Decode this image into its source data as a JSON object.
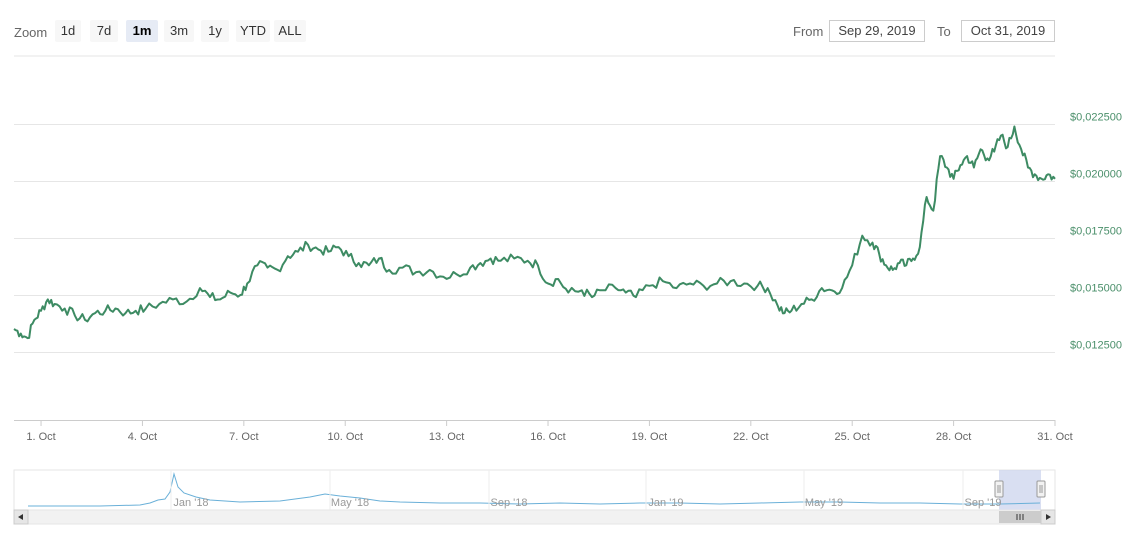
{
  "zoom": {
    "label": "Zoom",
    "buttons": [
      "1d",
      "7d",
      "1m",
      "3m",
      "1y",
      "YTD",
      "ALL"
    ],
    "active": "1m"
  },
  "range": {
    "from_label": "From",
    "from_value": "Sep 29, 2019",
    "to_label": "To",
    "to_value": "Oct 31, 2019"
  },
  "colors": {
    "line": "#3d8b63",
    "navigator_line": "#6ab0d8",
    "navigator_mask": "#c9d2ec",
    "grid": "#e6e6e6"
  },
  "chart_data": {
    "type": "line",
    "title": "",
    "xlabel": "",
    "ylabel": "",
    "x_range": [
      0.2,
      31
    ],
    "ylim": [
      0.0095,
      0.0255
    ],
    "y_ticks": [
      12500,
      15000,
      17500,
      20000,
      22500
    ],
    "y_tick_labels": [
      "$0,012500",
      "$0,015000",
      "$0,017500",
      "$0,020000",
      "$0,022500"
    ],
    "x_ticks": [
      1,
      4,
      7,
      10,
      13,
      16,
      19,
      22,
      25,
      28,
      31
    ],
    "x_tick_labels": [
      "1. Oct",
      "4. Oct",
      "7. Oct",
      "10. Oct",
      "13. Oct",
      "16. Oct",
      "19. Oct",
      "22. Oct",
      "25. Oct",
      "28. Oct",
      "31. Oct"
    ],
    "grid": true,
    "series": [
      {
        "x": [
          0.2,
          0.4,
          0.6,
          0.8,
          1.0,
          1.2,
          1.4,
          1.7,
          2.0,
          2.3,
          2.6,
          2.9,
          3.2,
          3.5,
          3.8,
          4.1,
          4.5,
          4.9,
          5.3,
          5.7,
          6.0,
          6.3,
          6.6,
          6.9,
          7.1,
          7.4,
          7.7,
          8.0,
          8.3,
          8.6,
          8.9,
          9.2,
          9.5,
          9.8,
          10.1,
          10.4,
          10.7,
          11.0,
          11.3,
          11.7,
          12.1,
          12.5,
          12.9,
          13.3,
          13.7,
          14.0,
          14.3,
          14.6,
          15.0,
          15.4,
          15.7,
          16.0,
          16.3,
          16.6,
          17.0,
          17.3,
          17.6,
          18.0,
          18.3,
          18.6,
          19.0,
          19.4,
          19.8,
          20.2,
          20.6,
          21.0,
          21.4,
          21.8,
          22.2,
          22.5,
          22.8,
          23.0,
          23.2,
          23.5,
          23.8,
          24.1,
          24.4,
          24.7,
          25.0,
          25.3,
          25.6,
          25.8,
          26.0,
          26.2,
          26.4,
          26.6,
          26.8,
          27.0,
          27.2,
          27.4,
          27.6,
          27.8,
          28.0,
          28.2,
          28.4,
          28.6,
          28.8,
          29.0,
          29.2,
          29.4,
          29.6,
          29.8,
          30.0,
          30.2,
          30.4,
          30.6,
          30.8,
          31.0
        ],
        "values": [
          0.0135,
          0.0133,
          0.0131,
          0.0139,
          0.0143,
          0.0148,
          0.0146,
          0.0144,
          0.0141,
          0.0139,
          0.0142,
          0.0143,
          0.0144,
          0.0142,
          0.0143,
          0.0144,
          0.0146,
          0.0148,
          0.0147,
          0.0153,
          0.0149,
          0.0148,
          0.0151,
          0.015,
          0.0155,
          0.0163,
          0.0162,
          0.0161,
          0.0167,
          0.0169,
          0.0172,
          0.017,
          0.0169,
          0.0171,
          0.0167,
          0.0164,
          0.0163,
          0.0166,
          0.0161,
          0.0162,
          0.016,
          0.0161,
          0.0158,
          0.0159,
          0.0162,
          0.0164,
          0.0166,
          0.0165,
          0.0166,
          0.0165,
          0.0163,
          0.0155,
          0.0157,
          0.0151,
          0.0152,
          0.0149,
          0.0152,
          0.0153,
          0.0151,
          0.0149,
          0.0154,
          0.0156,
          0.0153,
          0.0155,
          0.0154,
          0.0155,
          0.0156,
          0.0155,
          0.0154,
          0.0153,
          0.0145,
          0.0142,
          0.0143,
          0.0146,
          0.0148,
          0.0153,
          0.0152,
          0.0153,
          0.0163,
          0.0176,
          0.0173,
          0.0168,
          0.0163,
          0.0161,
          0.0164,
          0.0163,
          0.0166,
          0.0171,
          0.0193,
          0.0187,
          0.0211,
          0.0206,
          0.0201,
          0.0207,
          0.0211,
          0.0206,
          0.0214,
          0.021,
          0.0213,
          0.022,
          0.0215,
          0.0224,
          0.0214,
          0.0206,
          0.0203,
          0.0201,
          0.0203,
          0.0201
        ]
      }
    ],
    "navigator": {
      "x_tick_labels": [
        "Jan '18",
        "May '18",
        "Sep '18",
        "Jan '19",
        "May '19",
        "Sep '19"
      ]
    }
  }
}
